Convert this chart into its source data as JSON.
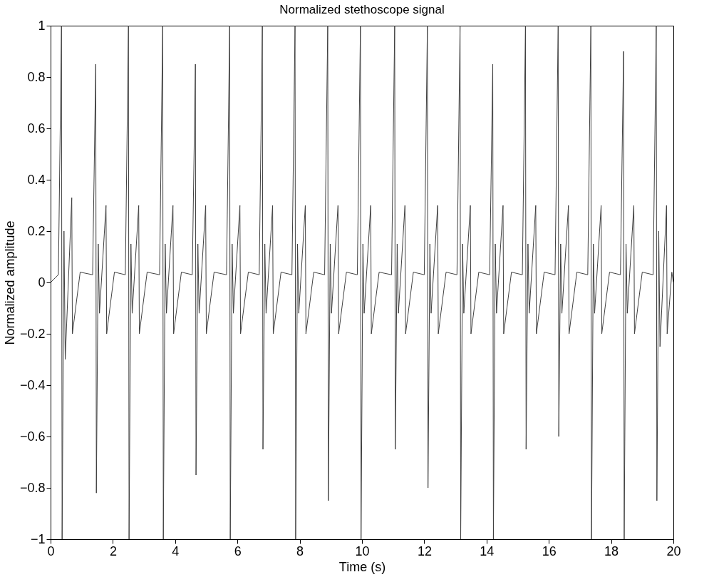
{
  "chart_data": {
    "type": "line",
    "title": "Normalized stethoscope signal",
    "xlabel": "Time (s)",
    "ylabel": "Normalized amplitude",
    "x": [
      0,
      0.25,
      0.35,
      0.37,
      0.43,
      0.47,
      0.68,
      0.7,
      0.95,
      1.35,
      1.45,
      1.47,
      1.53,
      1.57,
      1.78,
      1.8,
      2.05,
      2.4,
      2.5,
      2.52,
      2.58,
      2.62,
      2.83,
      2.85,
      3.1,
      3.5,
      3.6,
      3.62,
      3.68,
      3.72,
      3.93,
      3.95,
      4.2,
      4.55,
      4.65,
      4.67,
      4.73,
      4.77,
      4.98,
      5.0,
      5.25,
      5.65,
      5.75,
      5.77,
      5.83,
      5.87,
      6.08,
      6.1,
      6.35,
      6.7,
      6.8,
      6.82,
      6.88,
      6.92,
      7.13,
      7.15,
      7.4,
      7.75,
      7.85,
      7.87,
      7.93,
      7.97,
      8.18,
      8.2,
      8.45,
      8.8,
      8.9,
      8.92,
      8.98,
      9.02,
      9.23,
      9.25,
      9.5,
      9.85,
      9.95,
      9.97,
      10.03,
      10.07,
      10.28,
      10.3,
      10.55,
      10.95,
      11.05,
      11.07,
      11.13,
      11.17,
      11.38,
      11.4,
      11.65,
      12.0,
      12.1,
      12.12,
      12.18,
      12.22,
      12.43,
      12.45,
      12.7,
      13.05,
      13.15,
      13.17,
      13.23,
      13.27,
      13.48,
      13.5,
      13.75,
      14.1,
      14.2,
      14.22,
      14.28,
      14.32,
      14.53,
      14.55,
      14.8,
      15.15,
      15.25,
      15.27,
      15.33,
      15.37,
      15.58,
      15.6,
      15.85,
      16.2,
      16.3,
      16.32,
      16.38,
      16.42,
      16.63,
      16.65,
      16.9,
      17.25,
      17.35,
      17.37,
      17.43,
      17.47,
      17.68,
      17.7,
      17.95,
      18.3,
      18.4,
      18.42,
      18.48,
      18.52,
      18.73,
      18.75,
      19.0,
      19.35,
      19.45,
      19.47,
      19.53,
      19.57,
      19.78,
      19.8,
      19.95,
      20
    ],
    "series": [
      {
        "color": "#404040",
        "values": [
          0,
          0.03,
          1,
          -1,
          0.2,
          -0.3,
          0.33,
          -0.2,
          0.04,
          0.03,
          0.85,
          -0.82,
          0.15,
          -0.12,
          0.3,
          -0.2,
          0.04,
          0.03,
          1,
          -1,
          0.15,
          -0.12,
          0.3,
          -0.2,
          0.04,
          0.03,
          1,
          -1,
          0.15,
          -0.12,
          0.3,
          -0.2,
          0.04,
          0.03,
          0.85,
          -0.75,
          0.15,
          -0.12,
          0.3,
          -0.2,
          0.04,
          0.03,
          1,
          -1,
          0.15,
          -0.12,
          0.3,
          -0.2,
          0.04,
          0.03,
          1,
          -0.65,
          0.15,
          -0.12,
          0.3,
          -0.2,
          0.04,
          0.03,
          1,
          -1,
          0.15,
          -0.12,
          0.3,
          -0.2,
          0.04,
          0.03,
          1,
          -0.85,
          0.15,
          -0.12,
          0.3,
          -0.2,
          0.04,
          0.03,
          1,
          -1,
          0.15,
          -0.12,
          0.3,
          -0.2,
          0.04,
          0.03,
          1,
          -0.65,
          0.15,
          -0.12,
          0.3,
          -0.2,
          0.04,
          0.03,
          1,
          -0.8,
          0.15,
          -0.12,
          0.3,
          -0.2,
          0.04,
          0.03,
          1,
          -1,
          0.15,
          -0.12,
          0.3,
          -0.2,
          0.04,
          0.03,
          0.85,
          -1,
          0.15,
          -0.12,
          0.3,
          -0.2,
          0.04,
          0.03,
          1,
          -0.65,
          0.15,
          -0.12,
          0.3,
          -0.2,
          0.04,
          0.03,
          1,
          -0.6,
          0.15,
          -0.12,
          0.3,
          -0.2,
          0.04,
          0.03,
          1,
          -1,
          0.15,
          -0.12,
          0.3,
          -0.2,
          0.04,
          0.03,
          0.9,
          -1,
          0.15,
          -0.12,
          0.3,
          -0.2,
          0.04,
          0.03,
          1,
          -0.85,
          0.2,
          -0.25,
          0.3,
          -0.2,
          0.04,
          0
        ]
      }
    ],
    "xlim": [
      0,
      20
    ],
    "xticks": [
      0,
      2,
      4,
      6,
      8,
      10,
      12,
      14,
      16,
      18,
      20
    ],
    "ylim": [
      -1,
      1
    ],
    "yticks": [
      -1,
      -0.8,
      -0.6,
      -0.4,
      -0.2,
      0,
      0.2,
      0.4,
      0.6,
      0.8,
      1
    ],
    "grid": false,
    "legend": false,
    "marker": "none",
    "line_style": "solid"
  }
}
